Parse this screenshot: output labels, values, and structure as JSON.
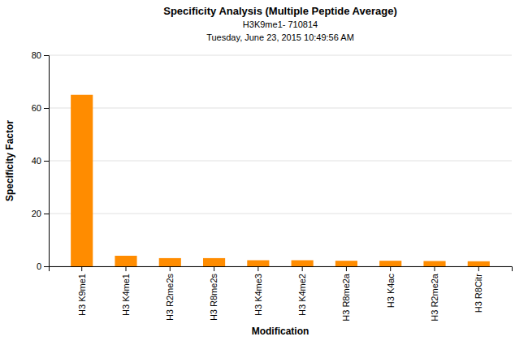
{
  "chart_data": {
    "type": "bar",
    "title": "Specificity Analysis (Multiple Peptide Average)",
    "subtitle": [
      "H3K9me1- 710814",
      "Tuesday, June 23, 2015 10:49:56 AM"
    ],
    "xlabel": "Modification",
    "ylabel": "Specificity Factor",
    "categories": [
      "H3 K9me1",
      "H3 K4me1",
      "H3 R2me2s",
      "H3 R8me2s",
      "H3 K4me3",
      "H3 K4me2",
      "H3 R8me2a",
      "H3 K4ac",
      "H3 R2me2a",
      "H3 R8Citr"
    ],
    "values": [
      65.0,
      4.0,
      3.1,
      3.1,
      2.3,
      2.3,
      2.1,
      2.1,
      2.0,
      1.9
    ],
    "color": "#FF8C00",
    "ylim": [
      0,
      80
    ],
    "yticks": [
      0,
      20,
      40,
      60,
      80
    ],
    "grid": true
  }
}
